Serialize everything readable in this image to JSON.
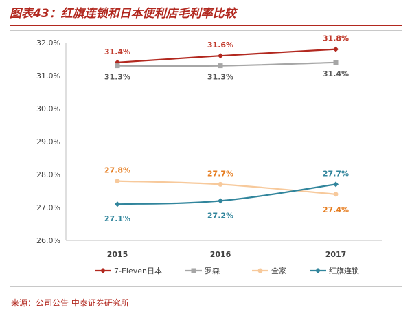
{
  "title": "图表43：红旗连锁和日本便利店毛利率比较",
  "source": "来源：公司公告  中泰证券研究所",
  "chart_data": {
    "type": "line",
    "x": [
      "2015",
      "2016",
      "2017"
    ],
    "ylim": [
      26.0,
      32.0
    ],
    "yticks": [
      26,
      27,
      28,
      29,
      30,
      31,
      32
    ],
    "ytick_labels": [
      "26.0%",
      "27.0%",
      "28.0%",
      "29.0%",
      "30.0%",
      "31.0%",
      "32.0%"
    ],
    "grid": false,
    "legend_position": "bottom",
    "series": [
      {
        "name": "7-Eleven日本",
        "values": [
          31.4,
          31.6,
          31.8
        ],
        "labels": [
          "31.4%",
          "31.6%",
          "31.8%"
        ],
        "color": "#b2281f",
        "marker": "diamond",
        "label_color": "#c0392b"
      },
      {
        "name": "罗森",
        "values": [
          31.3,
          31.3,
          31.4
        ],
        "labels": [
          "31.3%",
          "31.3%",
          "31.4%"
        ],
        "color": "#a6a6a6",
        "marker": "square",
        "label_color": "#595959"
      },
      {
        "name": "全家",
        "values": [
          27.8,
          27.7,
          27.4
        ],
        "labels": [
          "27.8%",
          "27.7%",
          "27.4%"
        ],
        "color": "#f7c99b",
        "marker": "circle",
        "label_color": "#e67e22"
      },
      {
        "name": "红旗连锁",
        "values": [
          27.1,
          27.2,
          27.7
        ],
        "labels": [
          "27.1%",
          "27.2%",
          "27.7%"
        ],
        "color": "#31859c",
        "marker": "diamond",
        "label_color": "#31859c"
      }
    ]
  }
}
